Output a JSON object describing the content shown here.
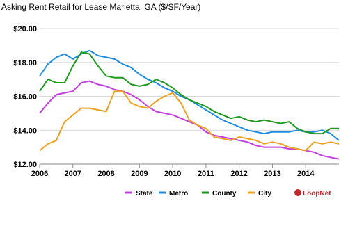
{
  "chart_data": {
    "type": "line",
    "title": "Asking Rent Retail for Lease Marietta, GA ($/SF/Year)",
    "brand": "LoopNet",
    "x": [
      2006,
      2006.25,
      2006.5,
      2006.75,
      2007,
      2007.25,
      2007.5,
      2007.75,
      2008,
      2008.25,
      2008.5,
      2008.75,
      2009,
      2009.25,
      2009.5,
      2009.75,
      2010,
      2010.25,
      2010.5,
      2010.75,
      2011,
      2011.25,
      2011.5,
      2011.75,
      2012,
      2012.25,
      2012.5,
      2012.75,
      2013,
      2013.25,
      2013.5,
      2013.75,
      2014,
      2014.25,
      2014.5,
      2014.75,
      2015
    ],
    "xlim": [
      2006,
      2015
    ],
    "xticks": [
      2006,
      2007,
      2008,
      2009,
      2010,
      2011,
      2012,
      2013,
      2014
    ],
    "ylim": [
      12,
      20
    ],
    "yticks": [
      {
        "value": 12,
        "label": "$12.00"
      },
      {
        "value": 14,
        "label": "$14.00"
      },
      {
        "value": 16,
        "label": "$16.00"
      },
      {
        "value": 18,
        "label": "$18.00"
      },
      {
        "value": 20,
        "label": "$20.00"
      }
    ],
    "grid": true,
    "legend": "bottom",
    "series": [
      {
        "name": "State",
        "color": "#c43fe0",
        "values": [
          15.0,
          15.6,
          16.1,
          16.2,
          16.3,
          16.8,
          16.9,
          16.7,
          16.6,
          16.4,
          16.3,
          16.1,
          15.8,
          15.4,
          15.1,
          15.0,
          14.9,
          14.7,
          14.5,
          14.3,
          13.9,
          13.7,
          13.6,
          13.5,
          13.4,
          13.3,
          13.1,
          13.0,
          13.0,
          13.0,
          12.9,
          12.9,
          12.8,
          12.7,
          12.5,
          12.4,
          12.3
        ]
      },
      {
        "name": "Metro",
        "color": "#1e8ce0",
        "values": [
          17.2,
          17.9,
          18.3,
          18.5,
          18.2,
          18.5,
          18.7,
          18.4,
          18.3,
          18.2,
          17.9,
          17.7,
          17.3,
          17.0,
          16.8,
          16.5,
          16.3,
          16.0,
          15.8,
          15.5,
          15.2,
          14.9,
          14.6,
          14.4,
          14.2,
          14.0,
          13.9,
          13.8,
          13.9,
          13.9,
          13.9,
          14.0,
          13.9,
          13.9,
          14.0,
          13.8,
          13.4
        ]
      },
      {
        "name": "County",
        "color": "#1e9a1e",
        "values": [
          16.3,
          17.0,
          16.8,
          16.8,
          17.8,
          18.6,
          18.5,
          17.8,
          17.2,
          17.1,
          17.1,
          16.7,
          16.6,
          16.7,
          17.0,
          16.8,
          16.5,
          16.1,
          15.8,
          15.6,
          15.4,
          15.1,
          14.9,
          14.7,
          14.8,
          14.6,
          14.5,
          14.6,
          14.5,
          14.4,
          14.5,
          14.1,
          13.9,
          13.8,
          13.8,
          14.1,
          14.1
        ]
      },
      {
        "name": "City",
        "color": "#f0a020",
        "values": [
          12.8,
          13.2,
          13.4,
          14.5,
          14.9,
          15.3,
          15.3,
          15.2,
          15.1,
          16.3,
          16.3,
          15.6,
          15.4,
          15.3,
          15.7,
          16.0,
          16.2,
          15.6,
          14.6,
          14.3,
          14.1,
          13.6,
          13.5,
          13.4,
          13.6,
          13.5,
          13.4,
          13.2,
          13.3,
          13.2,
          13.0,
          12.9,
          12.8,
          13.3,
          13.2,
          13.3,
          13.2
        ]
      }
    ]
  }
}
